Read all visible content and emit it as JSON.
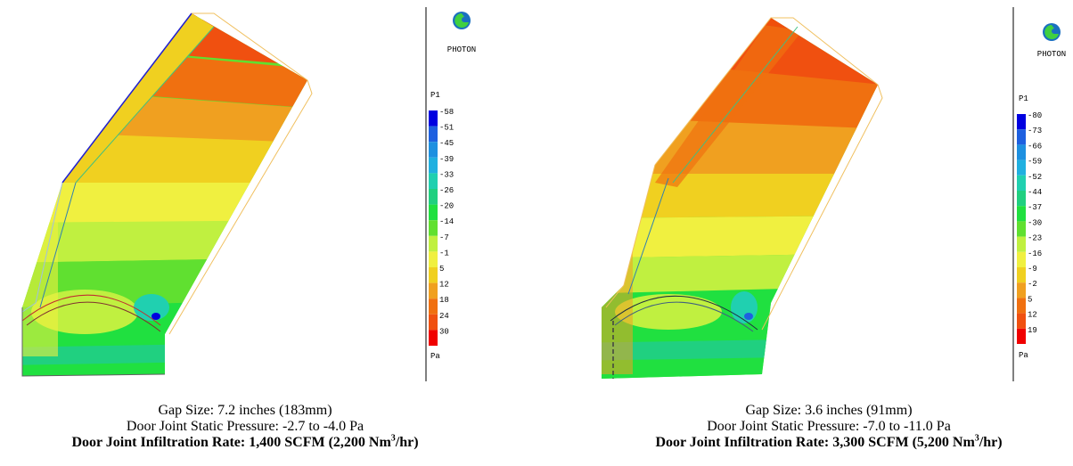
{
  "panels": [
    {
      "logo_text": "PHOTON",
      "legend_title": "P1",
      "legend_unit": "Pa",
      "legend_ticks": [
        "-58",
        "-51",
        "-45",
        "-39",
        "-33",
        "-26",
        "-20",
        "-14",
        "-7",
        "-1",
        "5",
        "12",
        "18",
        "24",
        "30"
      ],
      "caption_line1": "Gap Size:  7.2 inches (183mm)",
      "caption_line2": "Door Joint Static Pressure: -2.7 to -4.0 Pa",
      "caption_line3_main": "Door Joint Infiltration Rate:  1,400 SCFM (2,200 Nm",
      "caption_line3_sup": "3",
      "caption_line3_tail": "/hr)"
    },
    {
      "logo_text": "PHOTON",
      "legend_title": "P1",
      "legend_unit": "Pa",
      "legend_ticks": [
        "-80",
        "-73",
        "-66",
        "-59",
        "-52",
        "-44",
        "-37",
        "-30",
        "-23",
        "-16",
        "-9",
        "-2",
        "5",
        "12",
        "19"
      ],
      "caption_line1": "Gap Size:  3.6 inches (91mm)",
      "caption_line2": "Door Joint Static Pressure: -7.0 to -11.0 Pa",
      "caption_line3_main": "Door Joint Infiltration Rate: 3,300 SCFM (5,200 Nm",
      "caption_line3_sup": "3",
      "caption_line3_tail": "/hr)"
    }
  ],
  "colors": {
    "scale": [
      "#0000e0",
      "#1e60e0",
      "#1e90e0",
      "#20b0e0",
      "#20d0b0",
      "#20d080",
      "#20e040",
      "#60e030",
      "#c0f040",
      "#f0f040",
      "#f0d020",
      "#f0a020",
      "#f07010",
      "#f05010",
      "#f00000"
    ]
  }
}
